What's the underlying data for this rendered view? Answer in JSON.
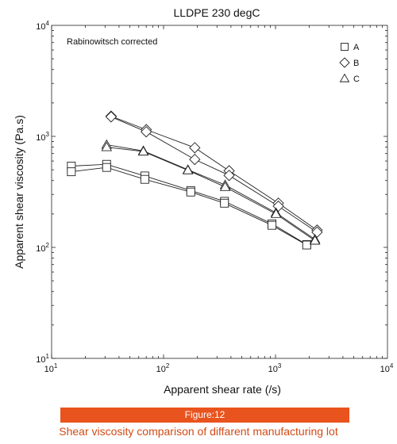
{
  "chart_data": {
    "type": "scatter",
    "title": "LLDPE 230 degC",
    "annotation": "Rabinowitsch corrected",
    "xlabel": "Apparent shear rate (/s)",
    "ylabel": "Apparent shear viscosity (Pa.s)",
    "xscale": "log",
    "yscale": "log",
    "xlim": [
      10,
      10000
    ],
    "ylim": [
      10,
      10000
    ],
    "xticks": [
      {
        "value": 10,
        "base": "10",
        "exp": "1"
      },
      {
        "value": 100,
        "base": "10",
        "exp": "2"
      },
      {
        "value": 1000,
        "base": "10",
        "exp": "3"
      },
      {
        "value": 10000,
        "base": "10",
        "exp": "4"
      }
    ],
    "yticks": [
      {
        "value": 10,
        "base": "10",
        "exp": "1"
      },
      {
        "value": 100,
        "base": "10",
        "exp": "2"
      },
      {
        "value": 1000,
        "base": "10",
        "exp": "3"
      },
      {
        "value": 10000,
        "base": "10",
        "exp": "4"
      }
    ],
    "grid": false,
    "legend_position": "top-right",
    "series": [
      {
        "name": "A",
        "marker": "square",
        "lines": [
          [
            [
              15,
              540
            ],
            [
              31,
              560
            ],
            [
              68,
              440
            ],
            [
              175,
              325
            ],
            [
              350,
              260
            ],
            [
              930,
              163
            ],
            [
              1900,
              106
            ]
          ],
          [
            [
              15,
              480
            ],
            [
              31,
              525
            ],
            [
              68,
              410
            ],
            [
              175,
              315
            ],
            [
              350,
              250
            ],
            [
              930,
              158
            ],
            [
              1900,
              105
            ]
          ]
        ]
      },
      {
        "name": "B",
        "marker": "diamond",
        "lines": [
          [
            [
              34,
              1520
            ],
            [
              70,
              1150
            ],
            [
              190,
              790
            ],
            [
              385,
              490
            ],
            [
              1060,
              250
            ],
            [
              2350,
              143
            ]
          ],
          [
            [
              34,
              1500
            ],
            [
              70,
              1100
            ],
            [
              190,
              620
            ],
            [
              385,
              445
            ],
            [
              1060,
              235
            ],
            [
              2350,
              137
            ]
          ]
        ]
      },
      {
        "name": "C",
        "marker": "triangle",
        "lines": [
          [
            [
              31,
              840
            ],
            [
              66,
              740
            ],
            [
              165,
              500
            ],
            [
              355,
              365
            ],
            [
              1010,
              205
            ],
            [
              2250,
              118
            ]
          ],
          [
            [
              31,
              800
            ],
            [
              66,
              730
            ],
            [
              165,
              495
            ],
            [
              355,
              350
            ],
            [
              1010,
              200
            ],
            [
              2250,
              115
            ]
          ]
        ]
      }
    ]
  },
  "figure": {
    "label": "Figure:12",
    "caption": "Shear viscosity comparison of diffarent manufacturing lot"
  }
}
